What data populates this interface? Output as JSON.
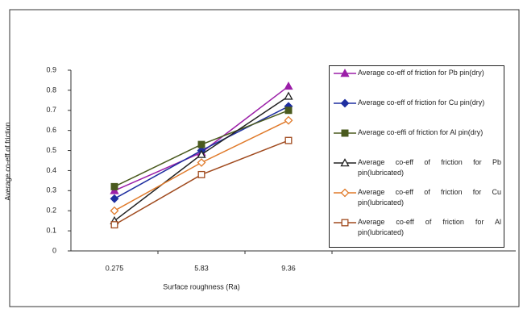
{
  "chart_data": {
    "type": "line",
    "y_label": "Average co-eff of friction",
    "x_label": "Surface roughness (Ra)",
    "categories": [
      "0.275",
      "5.83",
      "9.36"
    ],
    "ylim": [
      0,
      0.9
    ],
    "yticks": [
      {
        "value": 0,
        "label": "0"
      },
      0.1,
      0.2,
      0.3,
      0.4,
      0.5,
      0.6,
      0.7,
      0.8,
      0.9
    ],
    "series": [
      {
        "name": "Average co-eff of friction for Pb pin(dry)",
        "color": "#9b1fa8",
        "marker": "triangle",
        "marker_filled": true,
        "values": [
          0.3,
          0.49,
          0.82
        ]
      },
      {
        "name": "Average co-eff of friction for Cu pin(dry)",
        "color": "#1f2fa0",
        "marker": "diamond",
        "marker_filled": true,
        "values": [
          0.26,
          0.5,
          0.72
        ]
      },
      {
        "name": "Average co-effi of friction for Al pin(dry)",
        "color": "#4a5a1e",
        "marker": "square",
        "marker_filled": true,
        "values": [
          0.32,
          0.53,
          0.7
        ]
      },
      {
        "name": "Average co-eff of friction for Pb pin(lubricated)",
        "color": "#222222",
        "marker": "triangle",
        "marker_filled": false,
        "values": [
          0.15,
          0.48,
          0.77
        ]
      },
      {
        "name": "Average co-eff of friction for Cu pin(lubricated)",
        "color": "#e07a2a",
        "marker": "diamond",
        "marker_filled": false,
        "values": [
          0.2,
          0.44,
          0.65
        ]
      },
      {
        "name": "Average co-eff of friction for Al pin(lubricated)",
        "color": "#a04a1e",
        "marker": "square",
        "marker_filled": false,
        "values": [
          0.13,
          0.38,
          0.55
        ]
      }
    ]
  }
}
